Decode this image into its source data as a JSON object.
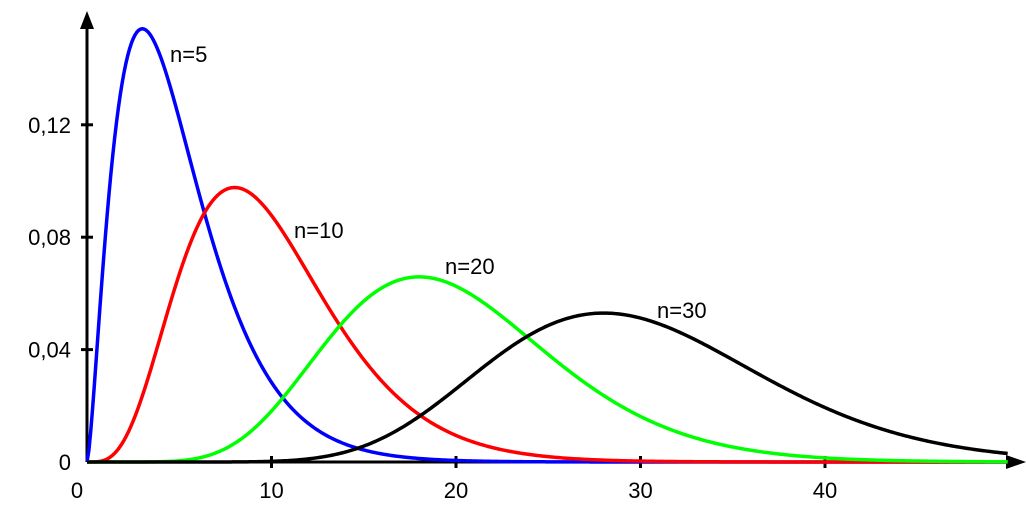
{
  "chart_data": {
    "type": "line",
    "title": "",
    "xlabel": "",
    "ylabel": "",
    "xlim": [
      0,
      50
    ],
    "ylim": [
      0,
      0.16
    ],
    "x_ticks": [
      {
        "value": 0,
        "label": "0"
      },
      {
        "value": 10,
        "label": "10"
      },
      {
        "value": 20,
        "label": "20"
      },
      {
        "value": 30,
        "label": "30"
      },
      {
        "value": 40,
        "label": "40"
      }
    ],
    "y_ticks": [
      {
        "value": 0,
        "label": "0"
      },
      {
        "value": 0.04,
        "label": "0,04"
      },
      {
        "value": 0.08,
        "label": "0,08"
      },
      {
        "value": 0.12,
        "label": "0,12"
      }
    ],
    "grid": false,
    "legend": "none",
    "series": [
      {
        "name": "n=5",
        "dof": 5,
        "color": "#0000ff",
        "peak": {
          "x": 3,
          "y": 0.154
        },
        "points": [
          [
            0,
            0
          ],
          [
            1,
            0.08
          ],
          [
            2,
            0.138
          ],
          [
            3,
            0.154
          ],
          [
            4,
            0.144
          ],
          [
            5,
            0.122
          ],
          [
            6,
            0.096
          ],
          [
            7,
            0.071
          ],
          [
            8,
            0.049
          ],
          [
            10,
            0.022
          ],
          [
            12,
            0.009
          ],
          [
            15,
            0.002
          ],
          [
            20,
            0.0
          ]
        ]
      },
      {
        "name": "n=10",
        "dof": 10,
        "color": "#ff0000",
        "peak": {
          "x": 8,
          "y": 0.098
        },
        "points": [
          [
            0,
            0
          ],
          [
            2,
            0.008
          ],
          [
            4,
            0.045
          ],
          [
            6,
            0.08
          ],
          [
            8,
            0.098
          ],
          [
            10,
            0.088
          ],
          [
            12,
            0.063
          ],
          [
            14,
            0.039
          ],
          [
            16,
            0.021
          ],
          [
            18,
            0.01
          ],
          [
            20,
            0.004
          ],
          [
            25,
            0.001
          ],
          [
            30,
            0.0
          ]
        ]
      },
      {
        "name": "n=20",
        "dof": 20,
        "color": "#00ff00",
        "peak": {
          "x": 18,
          "y": 0.066
        },
        "points": [
          [
            0,
            0
          ],
          [
            5,
            0.0
          ],
          [
            10,
            0.01
          ],
          [
            12,
            0.024
          ],
          [
            14,
            0.042
          ],
          [
            16,
            0.058
          ],
          [
            18,
            0.066
          ],
          [
            20,
            0.063
          ],
          [
            22,
            0.053
          ],
          [
            24,
            0.04
          ],
          [
            26,
            0.028
          ],
          [
            30,
            0.011
          ],
          [
            35,
            0.003
          ],
          [
            40,
            0.0
          ]
        ]
      },
      {
        "name": "n=30",
        "dof": 30,
        "color": "#000000",
        "peak": {
          "x": 28,
          "y": 0.053
        },
        "points": [
          [
            0,
            0
          ],
          [
            10,
            0.0
          ],
          [
            15,
            0.002
          ],
          [
            20,
            0.016
          ],
          [
            22,
            0.028
          ],
          [
            24,
            0.04
          ],
          [
            26,
            0.049
          ],
          [
            28,
            0.053
          ],
          [
            30,
            0.051
          ],
          [
            32,
            0.046
          ],
          [
            34,
            0.038
          ],
          [
            38,
            0.022
          ],
          [
            42,
            0.011
          ],
          [
            46,
            0.005
          ],
          [
            50,
            0.002
          ]
        ]
      }
    ]
  },
  "labels": {
    "series": [
      "n=5",
      "n=10",
      "n=20",
      "n=30"
    ]
  }
}
